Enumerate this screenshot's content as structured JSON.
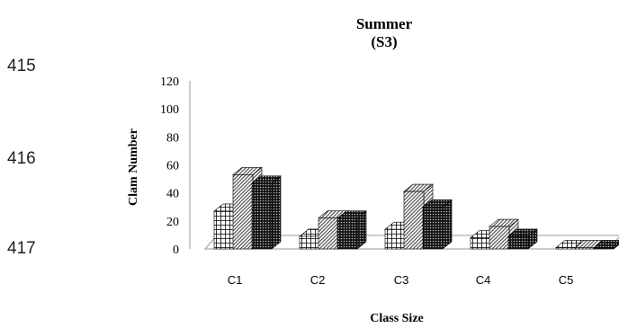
{
  "line_numbers": [
    "415",
    "416",
    "417"
  ],
  "chart_data": {
    "type": "bar",
    "title_line1": "Summer",
    "title_line2": "(S3)",
    "xlabel": "Class Size",
    "ylabel": "Clam Number",
    "ylim": [
      0,
      120
    ],
    "yticks": [
      0,
      20,
      40,
      60,
      80,
      100,
      120
    ],
    "categories": [
      "C1",
      "C2",
      "C3",
      "C4",
      "C5"
    ],
    "series": [
      {
        "values": [
          27,
          9,
          14,
          8,
          1
        ],
        "pattern": "grid"
      },
      {
        "values": [
          53,
          22,
          41,
          16,
          1
        ],
        "pattern": "hatch"
      },
      {
        "values": [
          47,
          22,
          30,
          9,
          1
        ],
        "pattern": "dense"
      }
    ],
    "grid": false,
    "legend": "none"
  }
}
